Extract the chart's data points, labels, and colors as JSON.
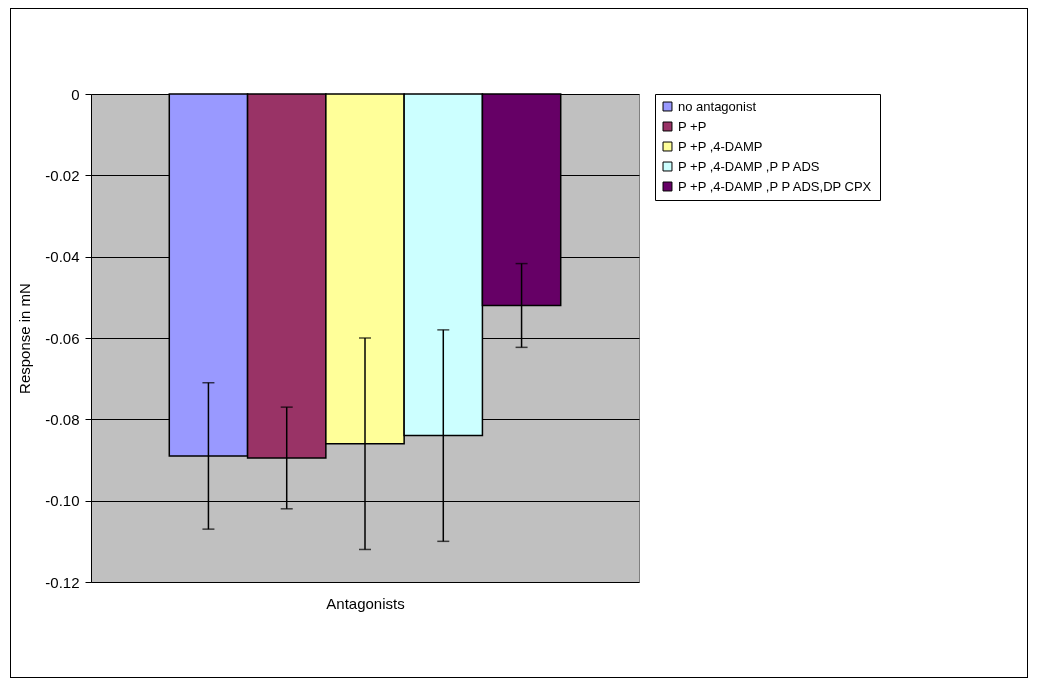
{
  "chart_data": {
    "type": "bar",
    "xlabel": "Antagonists",
    "ylabel": "Response in mN",
    "categories": [
      null
    ],
    "series": [
      {
        "name": "no antagonist",
        "color": "#9999ff",
        "values": [
          -0.089
        ],
        "errors": [
          0.018
        ]
      },
      {
        "name": "P +P",
        "color": "#993366",
        "values": [
          -0.0895
        ],
        "errors": [
          0.0125
        ]
      },
      {
        "name": "P +P ,4-DAMP",
        "color": "#ffff99",
        "values": [
          -0.086
        ],
        "errors": [
          0.026
        ]
      },
      {
        "name": "P +P ,4-DAMP ,P P ADS",
        "color": "#ccffff",
        "values": [
          -0.084
        ],
        "errors": [
          0.026
        ]
      },
      {
        "name": "P +P ,4-DAMP ,P P ADS,DP CPX",
        "color": "#660066",
        "values": [
          -0.052
        ],
        "errors": [
          0.0103
        ]
      }
    ],
    "ylim": [
      -0.12,
      0
    ],
    "yticks": [
      0,
      -0.02,
      -0.04,
      -0.06,
      -0.08,
      {
        "value": -0.1,
        "label": "-0.10"
      },
      -0.12
    ],
    "grid": "y",
    "legend": "right"
  }
}
